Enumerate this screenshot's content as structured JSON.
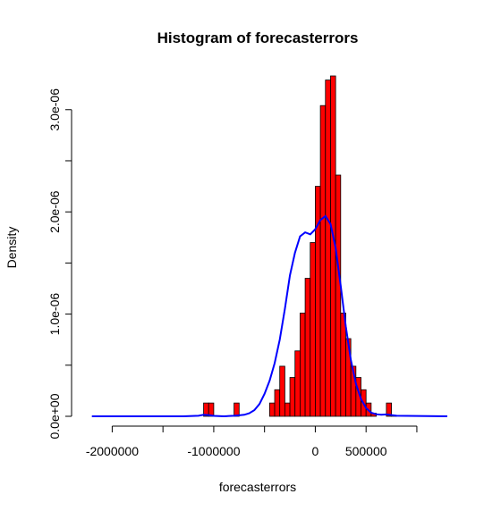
{
  "chart_data": {
    "type": "bar",
    "title": "Histogram of forecasterrors",
    "xlabel": "forecasterrors",
    "ylabel": "Density",
    "xlim": [
      -2400000,
      1300000
    ],
    "ylim": [
      0,
      3.4e-06
    ],
    "x_ticks": [
      -2000000,
      -1500000,
      -1000000,
      -500000,
      0,
      500000,
      1000000
    ],
    "x_tick_labels": [
      "-2000000",
      "",
      "-1000000",
      "",
      "0",
      "500000",
      ""
    ],
    "y_ticks": [
      0,
      5e-07,
      1e-06,
      1.5e-06,
      2e-06,
      2.5e-06,
      3e-06
    ],
    "y_tick_labels": [
      "0.0e+00",
      "",
      "1.0e-06",
      "",
      "2.0e-06",
      "",
      "3.0e-06"
    ],
    "bin_width": 50000,
    "bins": [
      {
        "start": -1100000,
        "density": 1.3e-07
      },
      {
        "start": -1050000,
        "density": 1.3e-07
      },
      {
        "start": -800000,
        "density": 1.3e-07
      },
      {
        "start": -450000,
        "density": 1.3e-07
      },
      {
        "start": -400000,
        "density": 2.6e-07
      },
      {
        "start": -350000,
        "density": 4.9e-07
      },
      {
        "start": -300000,
        "density": 1.3e-07
      },
      {
        "start": -250000,
        "density": 3.8e-07
      },
      {
        "start": -200000,
        "density": 6.4e-07
      },
      {
        "start": -150000,
        "density": 1.01e-06
      },
      {
        "start": -100000,
        "density": 1.35e-06
      },
      {
        "start": -50000,
        "density": 1.7e-06
      },
      {
        "start": 0,
        "density": 2.25e-06
      },
      {
        "start": 50000,
        "density": 3.04e-06
      },
      {
        "start": 100000,
        "density": 3.29e-06
      },
      {
        "start": 150000,
        "density": 3.33e-06
      },
      {
        "start": 200000,
        "density": 2.36e-06
      },
      {
        "start": 250000,
        "density": 1.01e-06
      },
      {
        "start": 300000,
        "density": 7.6e-07
      },
      {
        "start": 350000,
        "density": 4.9e-07
      },
      {
        "start": 400000,
        "density": 3.8e-07
      },
      {
        "start": 450000,
        "density": 2.6e-07
      },
      {
        "start": 500000,
        "density": 1.3e-07
      },
      {
        "start": 550000,
        "density": 3e-08
      },
      {
        "start": 700000,
        "density": 1.3e-07
      },
      {
        "start": 750000,
        "density": 1e-08
      }
    ],
    "density_curve": {
      "color": "#0000FF",
      "x": [
        -2200000,
        -1300000,
        -1150000,
        -1100000,
        -1050000,
        -1000000,
        -900000,
        -800000,
        -750000,
        -700000,
        -650000,
        -600000,
        -550000,
        -500000,
        -450000,
        -400000,
        -350000,
        -300000,
        -250000,
        -200000,
        -150000,
        -100000,
        -50000,
        0,
        50000,
        100000,
        150000,
        200000,
        250000,
        300000,
        350000,
        400000,
        450000,
        500000,
        550000,
        600000,
        650000,
        700000,
        750000,
        800000,
        1300000
      ],
      "y": [
        0,
        0,
        5e-09,
        1.5e-08,
        1.2e-08,
        4e-09,
        0,
        5e-09,
        1e-08,
        1.5e-08,
        3e-08,
        6e-08,
        1.2e-07,
        2.2e-07,
        3.5e-07,
        5.2e-07,
        7.5e-07,
        1.05e-06,
        1.38e-06,
        1.6e-06,
        1.76e-06,
        1.8e-06,
        1.78e-06,
        1.83e-06,
        1.92e-06,
        1.96e-06,
        1.88e-06,
        1.65e-06,
        1.28e-06,
        8.8e-07,
        5.5e-07,
        3.2e-07,
        1.7e-07,
        8e-08,
        3.5e-08,
        2e-08,
        1.5e-08,
        1.8e-08,
        1.2e-08,
        5e-09,
        0
      ]
    },
    "bar_fill": "#FF0000",
    "bar_stroke": "#000000",
    "grid": false,
    "legend": "none"
  }
}
